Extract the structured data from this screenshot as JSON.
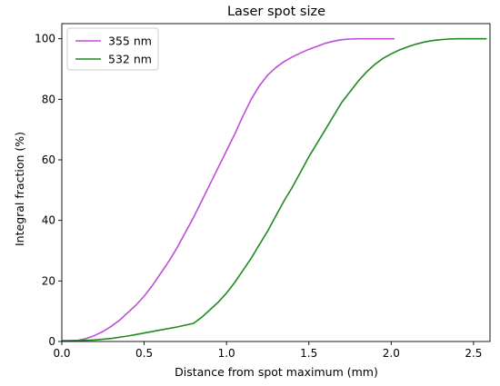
{
  "chart_data": {
    "type": "line",
    "title": "Laser spot size",
    "xlabel": "Distance from spot maximum (mm)",
    "ylabel": "Integral fraction (%)",
    "xlim": [
      0.0,
      2.6
    ],
    "ylim": [
      0,
      105
    ],
    "xticks": [
      0.0,
      0.5,
      1.0,
      1.5,
      2.0,
      2.5
    ],
    "xtick_labels": [
      "0.0",
      "0.5",
      "1.0",
      "1.5",
      "2.0",
      "2.5"
    ],
    "yticks": [
      0,
      20,
      40,
      60,
      80,
      100
    ],
    "ytick_labels": [
      "0",
      "20",
      "40",
      "60",
      "80",
      "100"
    ],
    "grid": false,
    "legend_position": "upper-left",
    "series": [
      {
        "name": "355 nm",
        "color": "#bf4dd8",
        "x": [
          0.0,
          0.05,
          0.1,
          0.15,
          0.2,
          0.25,
          0.3,
          0.35,
          0.4,
          0.45,
          0.5,
          0.55,
          0.6,
          0.65,
          0.7,
          0.75,
          0.8,
          0.85,
          0.9,
          0.95,
          1.0,
          1.05,
          1.1,
          1.15,
          1.2,
          1.25,
          1.3,
          1.35,
          1.4,
          1.45,
          1.5,
          1.55,
          1.6,
          1.65,
          1.7,
          1.75,
          1.8,
          1.85,
          1.9,
          1.95,
          2.0,
          2.02
        ],
        "y": [
          0.3,
          0.3,
          0.4,
          1.0,
          2.0,
          3.3,
          5.0,
          7.0,
          9.5,
          12.0,
          15.0,
          18.5,
          22.5,
          26.5,
          31.0,
          36.0,
          41.0,
          46.5,
          52.0,
          57.5,
          63.0,
          68.5,
          74.5,
          80.0,
          84.5,
          88.0,
          90.5,
          92.5,
          94.0,
          95.3,
          96.5,
          97.5,
          98.5,
          99.2,
          99.7,
          99.9,
          100.0,
          100.0,
          100.0,
          100.0,
          100.0,
          100.0
        ]
      },
      {
        "name": "532 nm",
        "color": "#1f8a1f",
        "x": [
          0.0,
          0.1,
          0.2,
          0.3,
          0.4,
          0.5,
          0.6,
          0.7,
          0.8,
          0.85,
          0.9,
          0.95,
          1.0,
          1.05,
          1.1,
          1.15,
          1.2,
          1.25,
          1.3,
          1.35,
          1.4,
          1.45,
          1.5,
          1.55,
          1.6,
          1.65,
          1.7,
          1.75,
          1.8,
          1.85,
          1.9,
          1.95,
          2.0,
          2.05,
          2.1,
          2.15,
          2.2,
          2.25,
          2.3,
          2.35,
          2.4,
          2.45,
          2.5,
          2.55,
          2.58
        ],
        "y": [
          0.2,
          0.3,
          0.5,
          1.0,
          1.8,
          2.8,
          3.8,
          4.8,
          6.0,
          8.0,
          10.5,
          13.0,
          16.0,
          19.5,
          23.5,
          27.5,
          32.0,
          36.5,
          41.5,
          46.5,
          51.0,
          56.0,
          61.0,
          65.5,
          70.0,
          74.5,
          79.0,
          82.5,
          86.0,
          89.0,
          91.5,
          93.5,
          95.0,
          96.3,
          97.3,
          98.2,
          98.9,
          99.4,
          99.7,
          99.9,
          100.0,
          100.0,
          100.0,
          100.0,
          100.0
        ]
      }
    ]
  }
}
